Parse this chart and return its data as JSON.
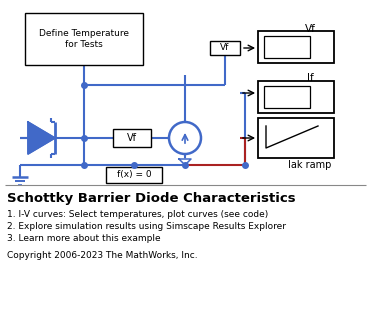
{
  "title": "Schottky Barrier Diode Characteristics",
  "line1": "1. I-V curves: Select temperatures, plot curves (see code)",
  "line2": "2. Explore simulation results using Simscape Results Explorer",
  "line3": "3. Learn more about this example",
  "copyright": "Copyright 2006-2023 The MathWorks, Inc.",
  "box_label": "Define Temperature\nfor Tests",
  "vf_label": "Vf",
  "fx_label": "f(x) = 0",
  "vf_scope_label": "Vf",
  "if_scope_label": "If",
  "iak_label": "Iak ramp",
  "blue_color": "#4169c8",
  "red_color": "#aa2222",
  "bg_color": "#ffffff",
  "text_color": "#000000"
}
